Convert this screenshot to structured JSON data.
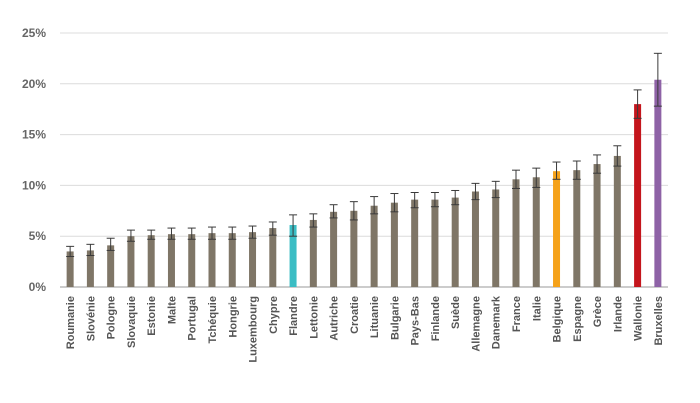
{
  "chart_data": {
    "type": "bar",
    "title": "",
    "xlabel": "",
    "ylabel": "",
    "ylim": [
      0,
      25
    ],
    "y_ticks": [
      "0%",
      "5%",
      "10%",
      "15%",
      "20%",
      "25%"
    ],
    "grid": "horizontal",
    "legend": "none",
    "categories": [
      "Roumanie",
      "Slovénie",
      "Pologne",
      "Slovaquie",
      "Estonie",
      "Malte",
      "Portugal",
      "Tchéquie",
      "Hongrie",
      "Luxembourg",
      "Chypre",
      "Flandre",
      "Lettonie",
      "Autriche",
      "Croatie",
      "Lituanie",
      "Bulgarie",
      "Pays-Bas",
      "Finlande",
      "Suède",
      "Allemagne",
      "Danemark",
      "France",
      "Italie",
      "Belgique",
      "Espagne",
      "Grèce",
      "Irlande",
      "Wallonie",
      "Bruxelles"
    ],
    "values": [
      3.5,
      3.6,
      4.1,
      5.0,
      5.1,
      5.2,
      5.2,
      5.3,
      5.3,
      5.4,
      5.8,
      6.1,
      6.6,
      7.4,
      7.5,
      8.0,
      8.3,
      8.6,
      8.6,
      8.8,
      9.4,
      9.6,
      10.6,
      10.8,
      11.4,
      11.5,
      12.1,
      12.9,
      18.0,
      20.4
    ],
    "error_low": [
      3.0,
      3.1,
      3.6,
      4.5,
      4.7,
      4.7,
      4.7,
      4.7,
      4.7,
      4.8,
      5.1,
      5.0,
      5.9,
      6.8,
      6.6,
      7.2,
      7.4,
      7.8,
      7.9,
      8.1,
      8.6,
      8.8,
      9.7,
      9.8,
      10.6,
      10.6,
      11.2,
      11.9,
      16.6,
      17.8
    ],
    "error_high": [
      4.0,
      4.2,
      4.8,
      5.6,
      5.6,
      5.8,
      5.8,
      5.9,
      5.9,
      6.0,
      6.4,
      7.1,
      7.2,
      8.1,
      8.4,
      8.9,
      9.2,
      9.3,
      9.3,
      9.5,
      10.2,
      10.4,
      11.5,
      11.7,
      12.3,
      12.4,
      13.0,
      13.9,
      19.4,
      23.0
    ],
    "colors": {
      "default": "#7f7667",
      "highlight": {
        "Flandre": "#3bbdc4",
        "Belgique": "#f5a21a",
        "Wallonie": "#c4151c",
        "Bruxelles": "#8e62a6"
      },
      "error_bar": "#3a3a3a",
      "grid": "#dcdcdc",
      "axis": "#9a9a9a"
    }
  }
}
